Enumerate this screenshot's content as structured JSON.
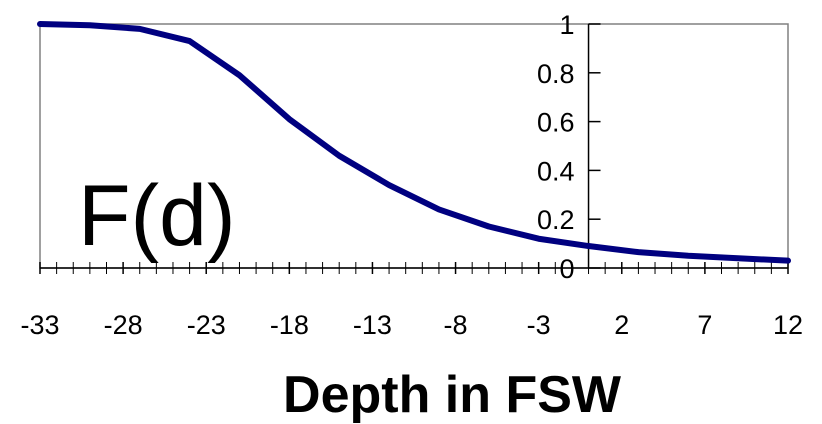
{
  "chart_data": {
    "type": "line",
    "title": "",
    "annotation": "F(d)",
    "xlabel": "Depth in FSW",
    "ylabel": "",
    "xlim": [
      -33,
      12
    ],
    "ylim": [
      0,
      1
    ],
    "x_tick_labels": [
      "-33",
      "-28",
      "-23",
      "-18",
      "-13",
      "-8",
      "-3",
      "2",
      "7",
      "12"
    ],
    "y_tick_labels": [
      "0",
      "0.2",
      "0.4",
      "0.6",
      "0.8",
      "1"
    ],
    "grid": false,
    "legend": "none",
    "line_color": "#000080",
    "series": [
      {
        "x": [
          -33,
          -30,
          -27,
          -24,
          -21,
          -18,
          -15,
          -12,
          -9,
          -6,
          -3,
          0,
          3,
          6,
          9,
          12
        ],
        "values": [
          1.0,
          0.995,
          0.98,
          0.93,
          0.79,
          0.61,
          0.46,
          0.34,
          0.24,
          0.17,
          0.12,
          0.09,
          0.065,
          0.05,
          0.04,
          0.03
        ]
      }
    ]
  }
}
